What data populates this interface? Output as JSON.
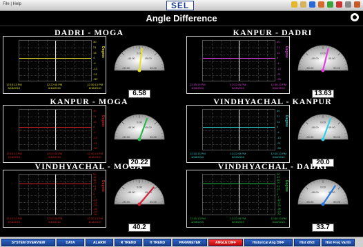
{
  "app": {
    "menu_text": "File | Help",
    "logo": "SEL",
    "title": "Angle Difference",
    "toolbar_icons": [
      {
        "name": "alarm-icon",
        "color": "#e5b62a"
      },
      {
        "name": "help-icon",
        "color": "#d6b35a"
      },
      {
        "name": "save-icon",
        "color": "#2a6ad6"
      },
      {
        "name": "tools-icon",
        "color": "#d66a2a"
      },
      {
        "name": "refresh-icon",
        "color": "#3aa33a"
      },
      {
        "name": "user-icon",
        "color": "#cc3333"
      },
      {
        "name": "minimize-icon",
        "color": "#888888"
      },
      {
        "name": "close-icon",
        "color": "#c85a2a"
      }
    ]
  },
  "panels": [
    {
      "title": "DADRI  -  MOGA",
      "y_ticks": [
        "30",
        "21",
        "13",
        "4",
        "-4",
        "-13",
        "-21",
        "-30"
      ],
      "y_axis_label": "Degree",
      "x_labels": [
        {
          "time": "12:15:13 PM",
          "date": "6/18/2010"
        },
        {
          "time": "12:22:45 PM",
          "date": "6/18/2010"
        },
        {
          "time": "12:30:13 PM",
          "date": "6/18/2010"
        }
      ],
      "trend_color": "#e6e02a",
      "gauge": {
        "value": "6.58",
        "angle_value": 6.58,
        "min_label": "-90.00",
        "max_label": "90.00",
        "top_label": "0.00",
        "left_label": "-45.00",
        "right_label": "45.00",
        "needle_color": "#e6e02a"
      }
    },
    {
      "title": "KANPUR - DADRI",
      "y_ticks": [
        "30",
        "21",
        "13",
        "4",
        "-4",
        "-13",
        "-21",
        "-30"
      ],
      "y_axis_label": "Degree",
      "x_labels": [
        {
          "time": "12:15:13 PM",
          "date": "6/18/2010"
        },
        {
          "time": "12:22:45 PM",
          "date": "6/18/2010"
        },
        {
          "time": "12:30:13 PM",
          "date": "6/18/2010"
        }
      ],
      "trend_color": "#e040e0",
      "gauge": {
        "value": "13.63",
        "angle_value": 13.63,
        "min_label": "-90.00",
        "max_label": "90.00",
        "top_label": "0.00",
        "left_label": "-45.00",
        "right_label": "45.00",
        "needle_color": "#e040e0"
      }
    },
    {
      "title": "KANPUR - MOGA",
      "y_ticks": [
        "30",
        "21",
        "13",
        "4",
        "-4",
        "-13",
        "-21",
        "-30"
      ],
      "y_axis_label": "Degree",
      "x_labels": [
        {
          "time": "12:15:13 PM",
          "date": "6/18/2010"
        },
        {
          "time": "12:22:45 PM",
          "date": "6/18/2010"
        },
        {
          "time": "12:30:13 PM",
          "date": "6/18/2010"
        }
      ],
      "trend_color": "#d02020",
      "gauge": {
        "value": "20.22",
        "angle_value": 20.22,
        "min_label": "-90.00",
        "max_label": "90.00",
        "top_label": "0.00",
        "left_label": "-45.00",
        "right_label": "45.00",
        "needle_color": "#2ab84a"
      }
    },
    {
      "title": "VINDHYACHAL - KANPUR",
      "y_ticks": [
        "30",
        "21",
        "13",
        "4",
        "-4",
        "-13",
        "-21",
        "-30"
      ],
      "y_axis_label": "Degree",
      "x_labels": [
        {
          "time": "12:15:13 PM",
          "date": "6/18/2010"
        },
        {
          "time": "12:22:45 PM",
          "date": "6/18/2010"
        },
        {
          "time": "12:30:13 PM",
          "date": "6/18/2010"
        }
      ],
      "trend_color": "#30d0d0",
      "gauge": {
        "value": "20.0",
        "angle_value": 20.0,
        "min_label": "-90.00",
        "max_label": "90.00",
        "top_label": "0.00",
        "left_label": "-45.00",
        "right_label": "45.00",
        "needle_color": "#30d0e8"
      }
    },
    {
      "title": "VINDHYACHAL - MOGA",
      "y_ticks": [
        "50",
        "43",
        "36",
        "29",
        "21",
        "14",
        "7",
        "0",
        "-7",
        "-14",
        "-21",
        "-29",
        "-36",
        "-43",
        "-50"
      ],
      "y_axis_label": "Degree",
      "x_labels": [
        {
          "time": "12:15:13 PM",
          "date": "6/18/2010"
        },
        {
          "time": "12:22:45 PM",
          "date": "6/18/2010"
        },
        {
          "time": "12:30:13 PM",
          "date": "6/18/2010"
        }
      ],
      "trend_color": "#d02020",
      "gauge": {
        "value": "40.2",
        "angle_value": 40.2,
        "min_label": "-90.00",
        "max_label": "90.00",
        "top_label": "0.00",
        "left_label": "-45.00",
        "right_label": "45.00",
        "needle_color": "#d0203a"
      }
    },
    {
      "title": "VINDHYACHAL - DADRI",
      "y_ticks": [
        "50",
        "43",
        "36",
        "29",
        "21",
        "14",
        "7",
        "0",
        "-7",
        "-14",
        "-21",
        "-29",
        "-36",
        "-43",
        "-50"
      ],
      "y_axis_label": "Degree",
      "x_labels": [
        {
          "time": "12:15:13 PM",
          "date": "6/18/2010"
        },
        {
          "time": "12:22:45 PM",
          "date": "6/18/2010"
        },
        {
          "time": "12:30:13 PM",
          "date": "6/18/2010"
        }
      ],
      "trend_color": "#20c040",
      "gauge": {
        "value": "33.7",
        "angle_value": 33.7,
        "min_label": "-90.00",
        "max_label": "90.00",
        "top_label": "0.00",
        "left_label": "-45.00",
        "right_label": "45.00",
        "needle_color": "#2a7ae0"
      }
    }
  ],
  "nav": [
    {
      "label": "SYSTEM OVERVIEW",
      "active": false
    },
    {
      "label": "DATA",
      "active": false
    },
    {
      "label": "ALARM",
      "active": false
    },
    {
      "label": "R TREND",
      "active": false
    },
    {
      "label": "H TREND",
      "active": false
    },
    {
      "label": "PARAMETER",
      "active": false
    },
    {
      "label": "ANGLE DIFF",
      "active": true
    },
    {
      "label": "Historical Ang DIFF",
      "active": false
    },
    {
      "label": "Hist df/dt",
      "active": false
    },
    {
      "label": "Hist Freq Varitn",
      "active": false
    }
  ]
}
